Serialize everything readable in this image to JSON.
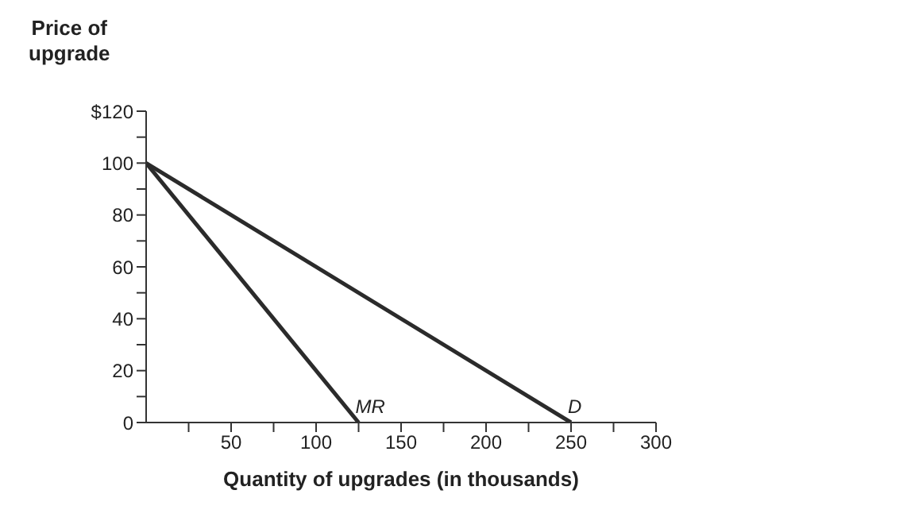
{
  "chart_data": {
    "type": "line",
    "ylabel": "Price of\nupgrade",
    "xlabel": "Quantity of upgrades (in thousands)",
    "series": [
      {
        "name": "MR",
        "color": "#2b2b2b",
        "x": [
          0,
          125
        ],
        "values": [
          100,
          0
        ]
      },
      {
        "name": "D",
        "color": "#2b2b2b",
        "x": [
          0,
          250
        ],
        "values": [
          100,
          0
        ]
      }
    ],
    "xlim": [
      0,
      300
    ],
    "xticks": [
      {
        "value": 25,
        "label": null
      },
      50,
      {
        "value": 75,
        "label": null
      },
      100,
      {
        "value": 125,
        "label": null
      },
      150,
      {
        "value": 175,
        "label": null
      },
      200,
      {
        "value": 225,
        "label": null
      },
      250,
      {
        "value": 275,
        "label": null
      },
      300
    ],
    "ylim": [
      0,
      120
    ],
    "yticks": [
      0,
      {
        "value": 10,
        "label": null
      },
      20,
      {
        "value": 30,
        "label": null
      },
      40,
      {
        "value": 50,
        "label": null
      },
      60,
      {
        "value": 70,
        "label": null
      },
      80,
      {
        "value": 90,
        "label": null
      },
      100,
      {
        "value": 110,
        "label": null
      },
      {
        "value": 120,
        "label": "$120"
      }
    ],
    "marker": "none",
    "line_style": "solid",
    "grid": false,
    "legend": false
  }
}
